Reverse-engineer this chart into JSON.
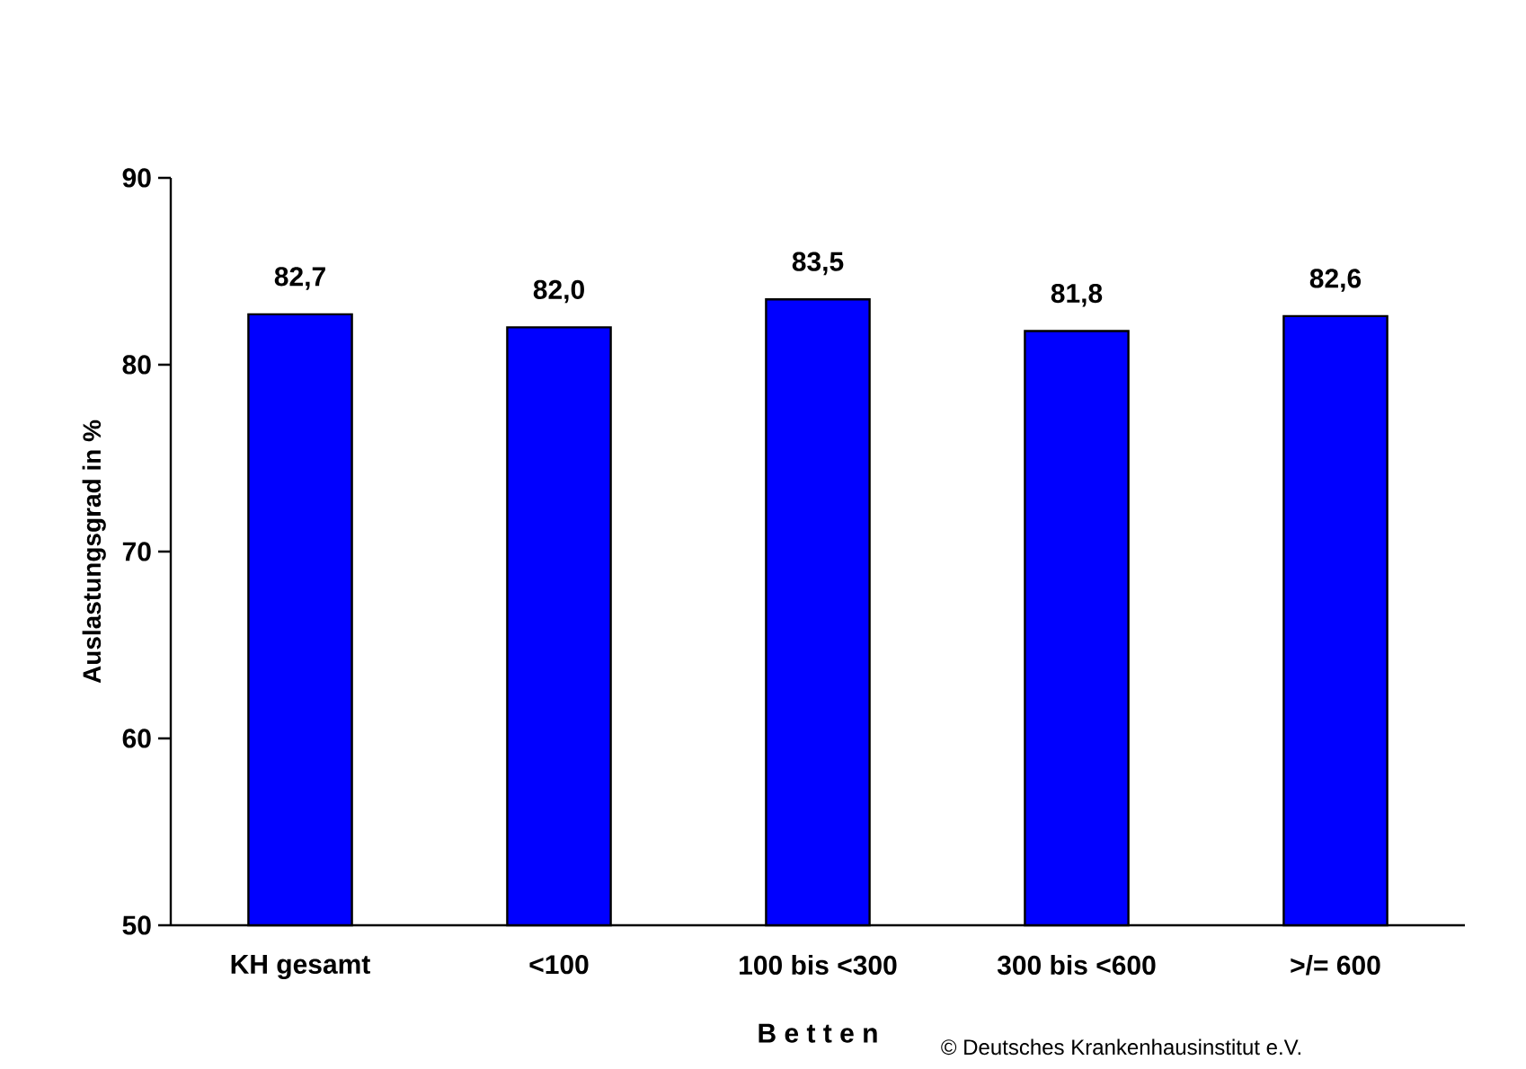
{
  "chart_data": {
    "type": "bar",
    "categories": [
      "KH gesamt",
      "<100",
      "100 bis <300",
      "300 bis <600",
      ">/= 600"
    ],
    "values": [
      82.7,
      82.0,
      83.5,
      81.8,
      82.6
    ],
    "value_labels": [
      "82,7",
      "82,0",
      "83,5",
      "81,8",
      "82,6"
    ],
    "color": "#0000ff",
    "ylim": [
      50,
      90
    ],
    "yticks": [
      50,
      60,
      70,
      80,
      90
    ],
    "xlabel": "B e t t e n",
    "ylabel": "Auslastungsgrad in %",
    "annotations": [
      "© Deutsches Krankenhausinstitut e.V."
    ],
    "grid": false
  }
}
